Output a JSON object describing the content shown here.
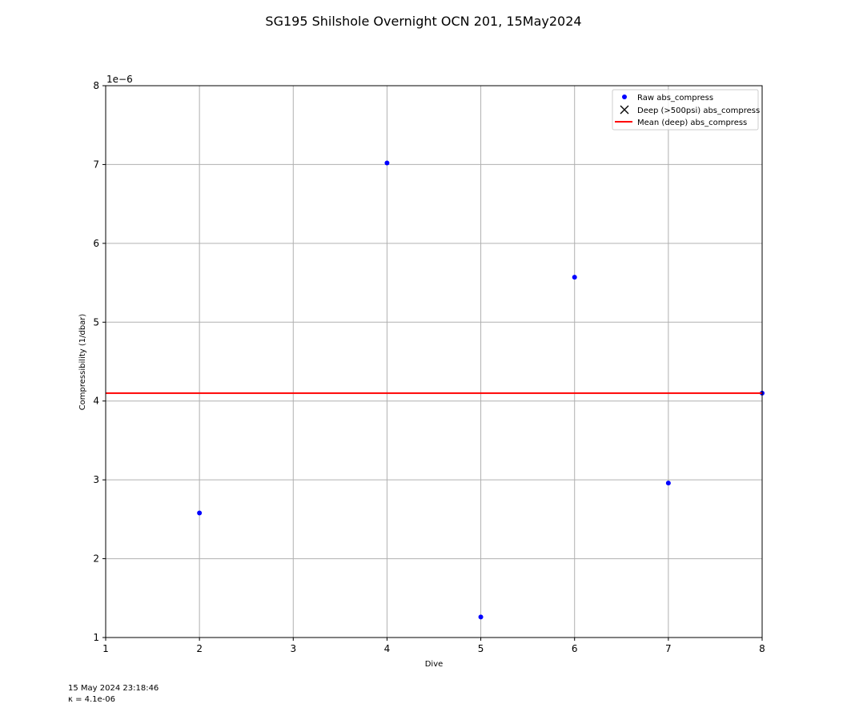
{
  "chart_data": {
    "type": "scatter",
    "title": "SG195 Shilshole Overnight OCN 201, 15May2024",
    "xlabel": "Dive",
    "ylabel": "Compressibility (1/dbar)",
    "xlim": [
      1,
      8
    ],
    "ylim": [
      1,
      8
    ],
    "y_scale_label": "1e−6",
    "y_scale_factor": 1e-06,
    "x_ticks": [
      "1",
      "2",
      "3",
      "4",
      "5",
      "6",
      "7",
      "8"
    ],
    "y_ticks": [
      "1",
      "2",
      "3",
      "4",
      "5",
      "6",
      "7",
      "8"
    ],
    "grid": true,
    "legend_position": "upper right",
    "series": [
      {
        "name": "Raw abs_compress",
        "kind": "marker",
        "color": "#0000ff",
        "x": [
          2,
          4,
          5,
          6,
          7,
          8
        ],
        "y": [
          2.58,
          7.02,
          1.26,
          5.57,
          2.96,
          4.1
        ]
      },
      {
        "name": "Deep (>500psi) abs_compress",
        "kind": "x-marker",
        "color": "#000000",
        "x": [],
        "y": []
      },
      {
        "name": "Mean (deep) abs_compress",
        "kind": "hline",
        "color": "#ff0000",
        "y": 4.1
      }
    ]
  },
  "footer": {
    "timestamp": "15 May 2024 23:18:46",
    "kappa": "κ = 4.1e-06"
  },
  "colors": {
    "grid": "#b0b0b0",
    "axes": "#000000"
  }
}
